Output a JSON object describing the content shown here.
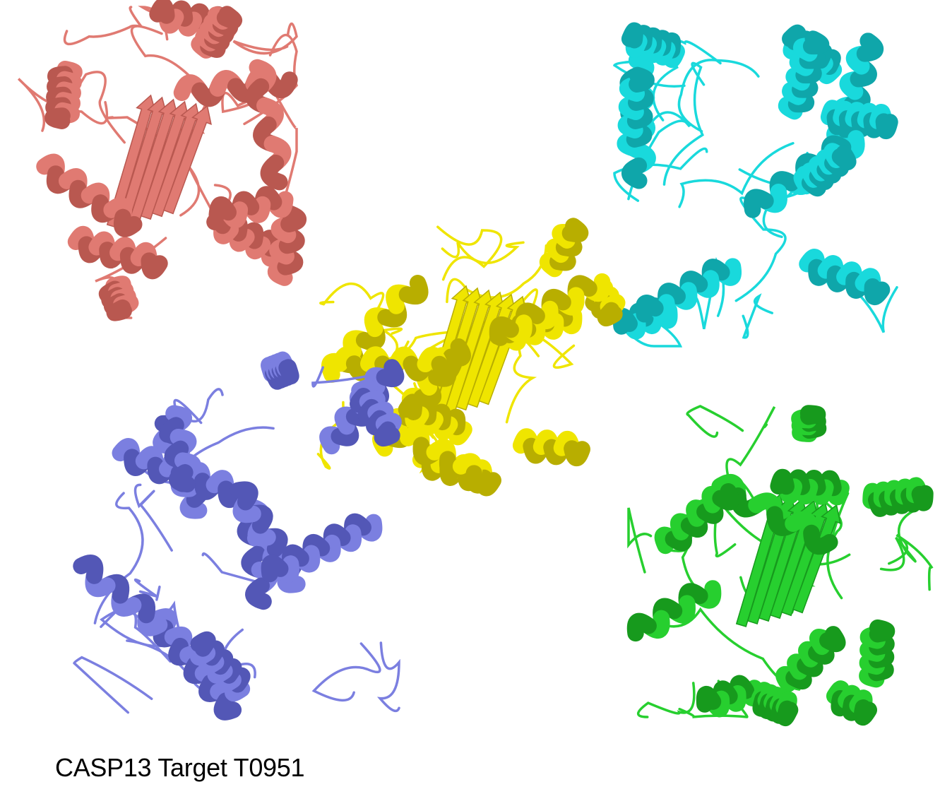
{
  "caption": "CASP13 Target T0951",
  "structures": [
    {
      "id": "salmon",
      "color": "#e07a72",
      "shade": "#b95850",
      "style": "mixed-sheet"
    },
    {
      "id": "cyan",
      "color": "#19d9dc",
      "shade": "#0fa6aa",
      "style": "helical-loopy"
    },
    {
      "id": "yellow",
      "color": "#efe500",
      "shade": "#b8ae00",
      "style": "alpha-beta"
    },
    {
      "id": "blue",
      "color": "#7b7fe0",
      "shade": "#5357b6",
      "style": "helical-loopy"
    },
    {
      "id": "green",
      "color": "#27cf2f",
      "shade": "#179a1d",
      "style": "alpha-beta"
    }
  ]
}
